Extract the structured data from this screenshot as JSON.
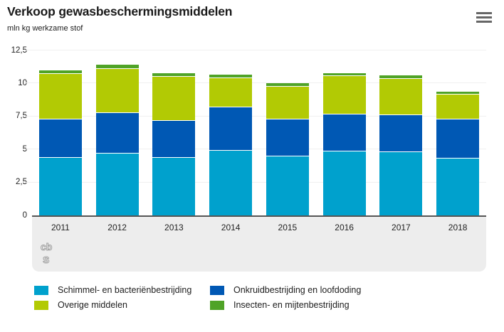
{
  "header": {
    "title": "Verkoop gewasbeschermingsmiddelen",
    "subtitle": "mln kg werkzame stof",
    "menu_icon": "hamburger-menu-icon"
  },
  "colors": {
    "axis_line": "#555555",
    "gridline": "#f0f0f0",
    "strip_background": "#ededed",
    "segment_gap": "#ffffff",
    "text": "#222222"
  },
  "chart_data": {
    "type": "bar",
    "stacked": true,
    "title": "Verkoop gewasbeschermingsmiddelen",
    "ylabel": "mln kg werkzame stof",
    "xlabel": "",
    "ylim": [
      0,
      12.5
    ],
    "grid": true,
    "legend_position": "bottom",
    "categories": [
      "2011",
      "2012",
      "2013",
      "2014",
      "2015",
      "2016",
      "2017",
      "2018"
    ],
    "series": [
      {
        "name": "Schimmel- en bacteriënbestrijding",
        "color": "#00a1cd",
        "values": [
          4.35,
          4.7,
          4.35,
          4.9,
          4.45,
          4.85,
          4.8,
          4.3
        ]
      },
      {
        "name": "Onkruidbestrijding en loofdoding",
        "color": "#0058b4",
        "values": [
          2.95,
          3.05,
          2.8,
          3.3,
          2.85,
          2.8,
          2.8,
          3.0
        ]
      },
      {
        "name": "Overige middelen",
        "color": "#b2ca04",
        "values": [
          3.4,
          3.35,
          3.35,
          2.2,
          2.45,
          2.9,
          2.75,
          1.85
        ]
      },
      {
        "name": "Insecten- en mijtenbestrijding",
        "color": "#4fa327",
        "values": [
          0.3,
          0.3,
          0.3,
          0.25,
          0.25,
          0.25,
          0.25,
          0.25
        ]
      }
    ],
    "yticks": [
      {
        "value": 0,
        "label": "0"
      },
      {
        "value": 2.5,
        "label": "2,5"
      },
      {
        "value": 5,
        "label": "5"
      },
      {
        "value": 7.5,
        "label": "7,5"
      },
      {
        "value": 10,
        "label": "10"
      },
      {
        "value": 12.5,
        "label": "12,5"
      }
    ]
  },
  "footer": {
    "logo_line1": "cb",
    "logo_line2": "s"
  }
}
